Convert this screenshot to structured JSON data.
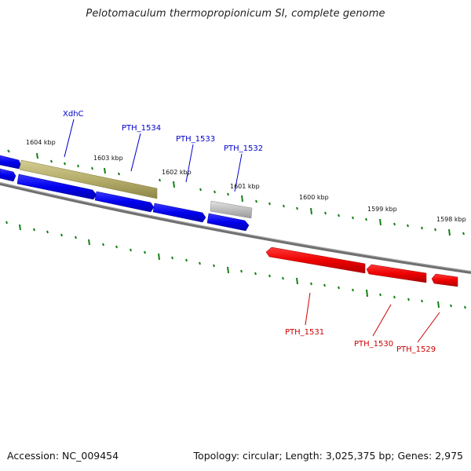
{
  "title": "Pelotomaculum thermopropionicum SI, complete genome",
  "footer": {
    "accession_label": "Accession:",
    "accession_value": "NC_009454",
    "topology_label": "Topology:",
    "topology_value": "circular",
    "length_label": "Length:",
    "length_value": "3,025,375 bp",
    "genes_label": "Genes:",
    "genes_value": "2,975"
  },
  "colors": {
    "forward_strand": "#0000ee",
    "reverse_strand": "#ee0000",
    "highlight_gene": "#b5ad6a",
    "grey_gene": "#b8b8b8",
    "backbone": "#808080",
    "tick": "#138013",
    "kbp_label": "#111111"
  },
  "scale_labels": [
    "1604 kbp",
    "1603 kbp",
    "1602 kbp",
    "1601 kbp",
    "1600 kbp",
    "1599 kbp",
    "1598 kbp"
  ],
  "forward_genes": [
    {
      "name": "",
      "color": "blue",
      "label": ""
    },
    {
      "name": "XdhC",
      "color": "olive",
      "label": "XdhC"
    },
    {
      "name": "",
      "color": "blue",
      "label": ""
    },
    {
      "name": "PTH_1534",
      "color": "blue",
      "label": "PTH_1534"
    },
    {
      "name": "PTH_1533",
      "color": "blue",
      "label": "PTH_1533"
    },
    {
      "name": "PTH_1532",
      "color": "blue",
      "label": "PTH_1532"
    },
    {
      "name": "",
      "color": "grey",
      "label": ""
    }
  ],
  "reverse_genes": [
    {
      "name": "PTH_1531",
      "color": "red",
      "label": "PTH_1531"
    },
    {
      "name": "PTH_1530",
      "color": "red",
      "label": "PTH_1530"
    },
    {
      "name": "PTH_1529",
      "color": "red",
      "label": "PTH_1529"
    }
  ]
}
